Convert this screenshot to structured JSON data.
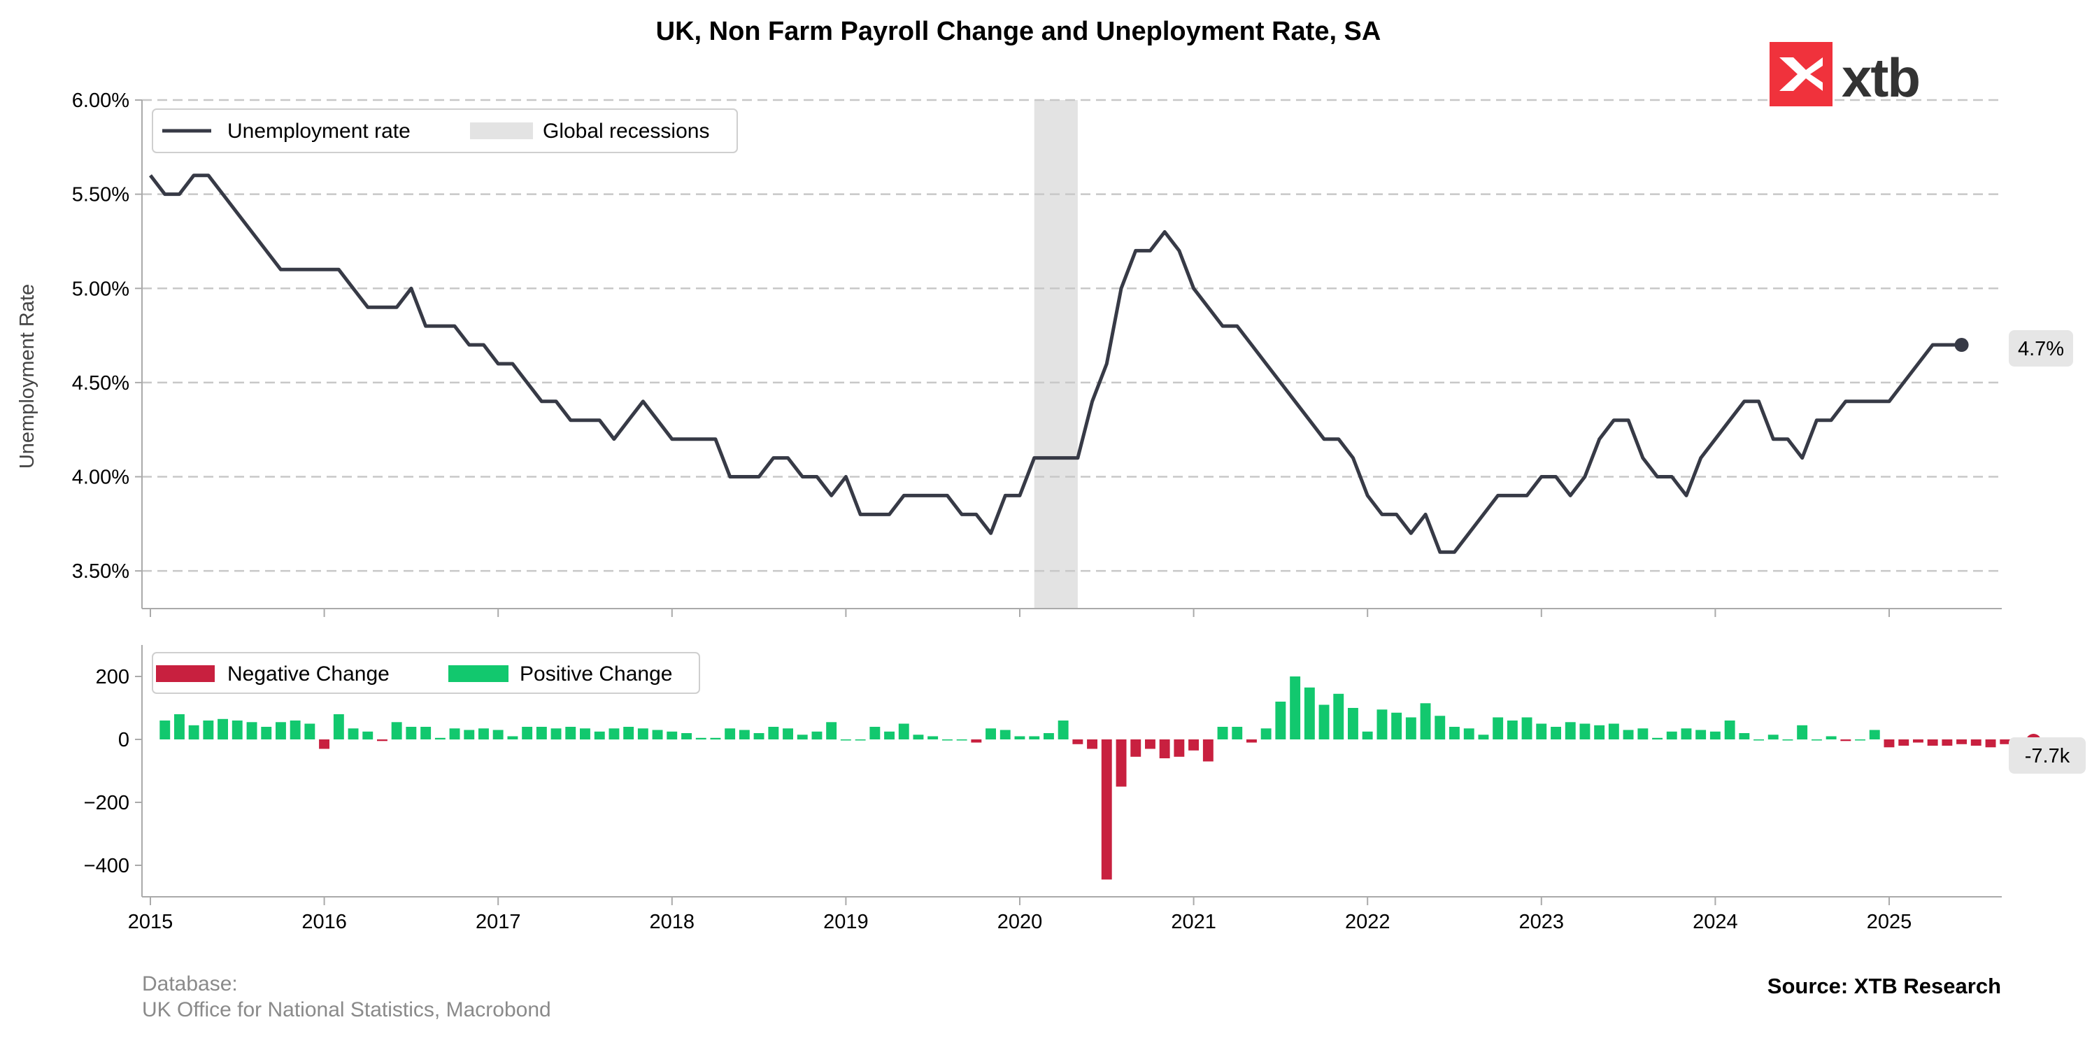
{
  "title": "UK, Non Farm Payroll Change and Uneployment Rate, SA",
  "logo": {
    "text": "xtb",
    "color": "#f0323c"
  },
  "footer": {
    "database_label": "Database:",
    "database_sources": "UK Office for National Statistics, Macrobond",
    "source": "Source: XTB Research"
  },
  "chart_data": [
    {
      "type": "line",
      "ylabel": "Unemployment Rate",
      "ylim": [
        3.3,
        6.0
      ],
      "yticks": [
        3.5,
        4.0,
        4.5,
        5.0,
        5.5,
        6.0
      ],
      "ytick_labels": [
        "3.50%",
        "4.00%",
        "4.50%",
        "5.00%",
        "5.50%",
        "6.00%"
      ],
      "grid": "horizontal dashed",
      "legend": {
        "placement": "top-left",
        "entries": [
          "Unemployment rate",
          "Global recessions"
        ]
      },
      "series": [
        {
          "name": "Unemployment rate",
          "color": "#373a46",
          "start": "2015-01",
          "frequency": "monthly",
          "values": [
            5.6,
            5.5,
            5.5,
            5.6,
            5.6,
            5.5,
            5.4,
            5.3,
            5.2,
            5.1,
            5.1,
            5.1,
            5.1,
            5.1,
            5.0,
            4.9,
            4.9,
            4.9,
            5.0,
            4.8,
            4.8,
            4.8,
            4.7,
            4.7,
            4.6,
            4.6,
            4.5,
            4.4,
            4.4,
            4.3,
            4.3,
            4.3,
            4.2,
            4.3,
            4.4,
            4.3,
            4.2,
            4.2,
            4.2,
            4.2,
            4.0,
            4.0,
            4.0,
            4.1,
            4.1,
            4.0,
            4.0,
            3.9,
            4.0,
            3.8,
            3.8,
            3.8,
            3.9,
            3.9,
            3.9,
            3.9,
            3.8,
            3.8,
            3.7,
            3.9,
            3.9,
            4.1,
            4.1,
            4.1,
            4.1,
            4.4,
            4.6,
            5.0,
            5.2,
            5.2,
            5.3,
            5.2,
            5.0,
            4.9,
            4.8,
            4.8,
            4.7,
            4.6,
            4.5,
            4.4,
            4.3,
            4.2,
            4.2,
            4.1,
            3.9,
            3.8,
            3.8,
            3.7,
            3.8,
            3.6,
            3.6,
            3.7,
            3.8,
            3.9,
            3.9,
            3.9,
            4.0,
            4.0,
            3.9,
            4.0,
            4.2,
            4.3,
            4.3,
            4.1,
            4.0,
            4.0,
            3.9,
            4.1,
            4.2,
            4.3,
            4.4,
            4.4,
            4.2,
            4.2,
            4.1,
            4.3,
            4.3,
            4.4,
            4.4,
            4.4,
            4.4,
            4.5,
            4.6,
            4.7,
            4.7,
            4.7
          ]
        }
      ],
      "last_value_label": "4.7%",
      "recession_shading": {
        "name": "Global recessions",
        "start": "2020-02",
        "end": "2020-04",
        "color": "#e3e3e3"
      }
    },
    {
      "type": "bar",
      "ylim": [
        -500,
        300
      ],
      "yticks": [
        -400,
        -200,
        0,
        200
      ],
      "ytick_labels": [
        "−400",
        "−200",
        "0",
        "200"
      ],
      "legend": {
        "placement": "top-left",
        "entries": [
          "Negative Change",
          "Positive Change"
        ]
      },
      "colors": {
        "negative": "#c8203f",
        "positive": "#12c86e"
      },
      "start": "2015-02",
      "frequency": "monthly",
      "values": [
        60,
        80,
        45,
        60,
        65,
        60,
        55,
        40,
        55,
        60,
        50,
        -30,
        80,
        35,
        25,
        -5,
        55,
        40,
        40,
        5,
        35,
        30,
        35,
        30,
        10,
        40,
        40,
        35,
        40,
        35,
        25,
        35,
        40,
        35,
        30,
        25,
        20,
        5,
        5,
        35,
        30,
        20,
        40,
        35,
        15,
        25,
        55,
        0,
        0,
        40,
        25,
        50,
        15,
        10,
        0,
        0,
        -10,
        35,
        30,
        10,
        10,
        20,
        60,
        -15,
        -30,
        -445,
        -150,
        -55,
        -30,
        -60,
        -55,
        -35,
        -70,
        40,
        40,
        -10,
        35,
        120,
        200,
        165,
        110,
        145,
        100,
        25,
        95,
        85,
        70,
        115,
        75,
        40,
        35,
        15,
        70,
        60,
        70,
        50,
        40,
        55,
        50,
        45,
        50,
        30,
        35,
        5,
        25,
        35,
        30,
        25,
        60,
        20,
        0,
        15,
        0,
        45,
        0,
        10,
        -5,
        0,
        30,
        -25,
        -20,
        -10,
        -20,
        -20,
        -15,
        -20,
        -25,
        -15,
        -8
      ]
    }
  ],
  "bar_last_value_label": "-7.7k",
  "x_axis": {
    "tick_labels": [
      "2015",
      "2016",
      "2017",
      "2018",
      "2019",
      "2020",
      "2021",
      "2022",
      "2023",
      "2024",
      "2025"
    ]
  }
}
